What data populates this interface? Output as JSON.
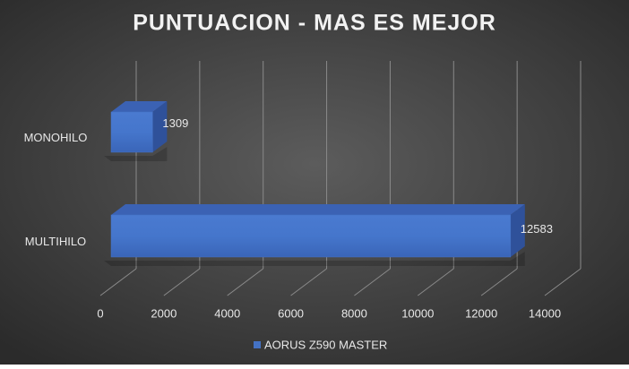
{
  "chart_data": {
    "type": "bar3d",
    "orientation": "horizontal",
    "title": "PUNTUACION - MAS ES MEJOR",
    "categories": [
      "MONOHILO",
      "MULTIHILO"
    ],
    "series": [
      {
        "name": "AORUS Z590 MASTER",
        "color": "#4472c4",
        "values": [
          1309,
          12583
        ]
      }
    ],
    "xlim": [
      0,
      14000
    ],
    "xticks": [
      0,
      2000,
      4000,
      6000,
      8000,
      10000,
      12000,
      14000
    ],
    "grid": true,
    "legend": "bottom"
  }
}
